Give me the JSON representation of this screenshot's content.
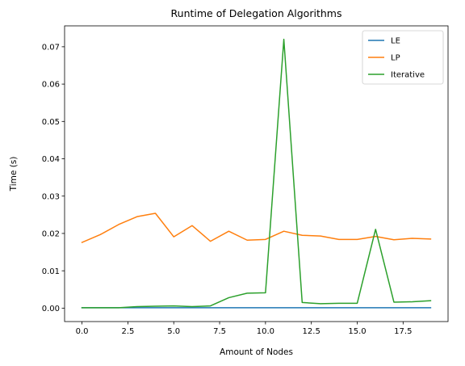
{
  "chart_data": {
    "type": "line",
    "title": "Runtime of Delegation Algorithms",
    "xlabel": "Amount of Nodes",
    "ylabel": "Time (s)",
    "xlim": [
      -0.95,
      19.95
    ],
    "ylim": [
      -0.0036,
      0.0756
    ],
    "xticks": [
      0,
      2.5,
      5,
      7.5,
      10,
      12.5,
      15,
      17.5
    ],
    "xtick_labels": [
      "0.0",
      "2.5",
      "5.0",
      "7.5",
      "10.0",
      "12.5",
      "15.0",
      "17.5"
    ],
    "yticks": [
      0,
      0.01,
      0.02,
      0.03,
      0.04,
      0.05,
      0.06,
      0.07
    ],
    "ytick_labels": [
      "0.00",
      "0.01",
      "0.02",
      "0.03",
      "0.04",
      "0.05",
      "0.06",
      "0.07"
    ],
    "grid": false,
    "legend_position": "upper right",
    "x": [
      0,
      1,
      2,
      3,
      4,
      5,
      6,
      7,
      8,
      9,
      10,
      11,
      12,
      13,
      14,
      15,
      16,
      17,
      18,
      19
    ],
    "series": [
      {
        "name": "LE",
        "color": "#1f77b4",
        "values": [
          0.0001,
          0.0001,
          0.0001,
          0.0001,
          0.0001,
          0.0001,
          0.0001,
          0.0001,
          0.0001,
          0.0001,
          0.0001,
          0.0001,
          0.0001,
          0.0001,
          0.0001,
          0.0001,
          0.0001,
          0.0001,
          0.0001,
          0.0001
        ]
      },
      {
        "name": "LP",
        "color": "#ff7f0e",
        "values": [
          0.0176,
          0.0197,
          0.0224,
          0.0245,
          0.0254,
          0.0191,
          0.0221,
          0.0179,
          0.0206,
          0.0182,
          0.0184,
          0.0206,
          0.0195,
          0.0193,
          0.0184,
          0.0184,
          0.0192,
          0.0183,
          0.0187,
          0.0185
        ]
      },
      {
        "name": "Iterative",
        "color": "#2ca02c",
        "values": [
          0.0001,
          0.0001,
          0.0001,
          0.0004,
          0.0005,
          0.0006,
          0.0004,
          0.0006,
          0.0028,
          0.004,
          0.0041,
          0.072,
          0.0015,
          0.0012,
          0.0013,
          0.0013,
          0.0211,
          0.0016,
          0.0017,
          0.002
        ]
      }
    ]
  }
}
